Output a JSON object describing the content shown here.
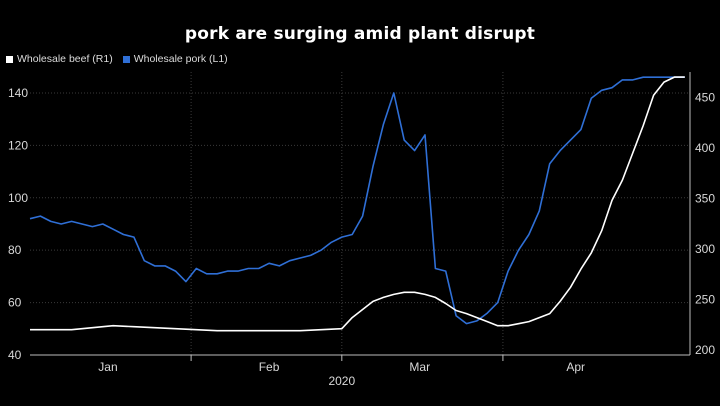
{
  "title": "pork are surging amid plant disrupt",
  "legend": {
    "beef": "Wholesale beef (R1)",
    "pork": "Wholesale pork (L1)"
  },
  "colors": {
    "beef": "#ffffff",
    "pork": "#2f6fd6",
    "grid": "#3a3a3a",
    "background": "#000000"
  },
  "chart_data": {
    "type": "line",
    "x_label_year": "2020",
    "x_ticks": [
      "Jan",
      "Feb",
      "Mar",
      "Apr"
    ],
    "left_axis": {
      "ylim": [
        40,
        148
      ],
      "ticks": [
        40,
        60,
        80,
        100,
        120,
        140
      ]
    },
    "right_axis": {
      "ylim": [
        195,
        475
      ],
      "ticks": [
        200,
        250,
        300,
        350,
        400,
        450
      ]
    },
    "grid": true,
    "x_day_range": [
      0,
      127
    ],
    "series": [
      {
        "name": "Wholesale pork (L1)",
        "axis": "left",
        "days": [
          0,
          2,
          4,
          6,
          8,
          10,
          12,
          14,
          16,
          18,
          20,
          22,
          24,
          26,
          28,
          30,
          32,
          34,
          36,
          38,
          40,
          42,
          44,
          46,
          48,
          50,
          52,
          54,
          56,
          58,
          60,
          62,
          64,
          66,
          68,
          70,
          72,
          74,
          76,
          78,
          80,
          82,
          84,
          86,
          88,
          90,
          92,
          94,
          96,
          98,
          100,
          102,
          104,
          106,
          108,
          110,
          112,
          114,
          116,
          118,
          120,
          122,
          124,
          126
        ],
        "values": [
          92,
          93,
          91,
          90,
          91,
          90,
          89,
          90,
          88,
          86,
          85,
          76,
          74,
          74,
          72,
          68,
          73,
          71,
          71,
          72,
          72,
          73,
          73,
          75,
          74,
          76,
          77,
          78,
          80,
          83,
          85,
          86,
          93,
          112,
          128,
          140,
          122,
          118,
          124,
          73,
          72,
          55,
          52,
          53,
          56,
          60,
          72,
          80,
          86,
          95,
          113,
          118,
          122,
          126,
          138,
          141,
          142,
          145,
          145,
          146,
          146,
          146,
          146,
          146
        ]
      },
      {
        "name": "Wholesale beef (R1)",
        "axis": "right",
        "days": [
          0,
          4,
          8,
          12,
          16,
          20,
          24,
          28,
          32,
          36,
          40,
          44,
          48,
          52,
          56,
          60,
          62,
          64,
          66,
          68,
          70,
          72,
          74,
          76,
          78,
          80,
          82,
          84,
          86,
          88,
          90,
          92,
          94,
          96,
          98,
          100,
          102,
          104,
          106,
          108,
          110,
          112,
          114,
          116,
          118,
          120,
          122,
          124,
          126
        ],
        "values": [
          220,
          220,
          220,
          222,
          224,
          223,
          222,
          221,
          220,
          219,
          219,
          219,
          219,
          219,
          220,
          221,
          232,
          240,
          248,
          252,
          255,
          257,
          257,
          255,
          252,
          246,
          239,
          236,
          232,
          228,
          224,
          224,
          226,
          228,
          232,
          236,
          248,
          262,
          280,
          296,
          318,
          348,
          368,
          395,
          422,
          452,
          465,
          470,
          470
        ]
      }
    ]
  }
}
